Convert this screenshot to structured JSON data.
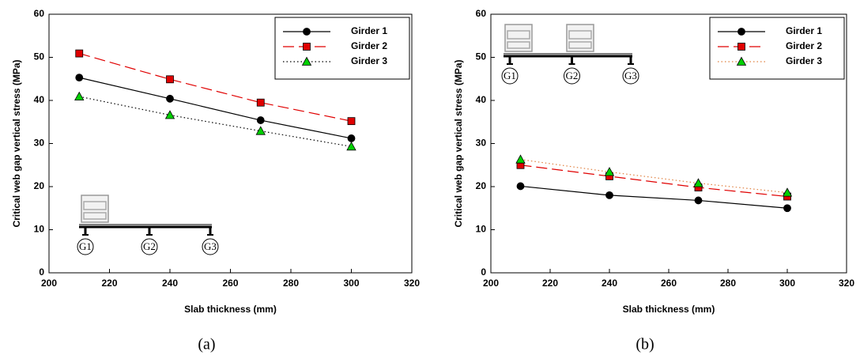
{
  "chart_data": [
    {
      "type": "line",
      "caption": "(a)",
      "x_label": "Slab thickness (mm)",
      "y_label": "Critical web gap vertical stress (MPa)",
      "x": [
        210,
        240,
        270,
        300
      ],
      "series": [
        {
          "name": "Girder 1",
          "color": "#000000",
          "marker_color": "#000000",
          "marker": "circle",
          "dash": "solid",
          "values": [
            45.3,
            40.4,
            35.4,
            31.2
          ]
        },
        {
          "name": "Girder 2",
          "color": "#e00000",
          "marker_color": "#e00000",
          "marker": "square",
          "dash": "dashed",
          "values": [
            50.9,
            44.9,
            39.5,
            35.2
          ]
        },
        {
          "name": "Girder 3",
          "color": "#000000",
          "marker_color": "#00d000",
          "marker": "triangle",
          "dash": "dotted",
          "values": [
            40.9,
            36.6,
            32.9,
            29.3
          ]
        }
      ],
      "xlim": [
        200,
        320
      ],
      "xticks": [
        200,
        220,
        240,
        260,
        280,
        300,
        320
      ],
      "ylim": [
        0,
        60
      ],
      "yticks": [
        0,
        10,
        20,
        30,
        40,
        50,
        60
      ],
      "legend": "upper-right",
      "annotations": [
        "G1",
        "G2",
        "G3"
      ]
    },
    {
      "type": "line",
      "caption": "(b)",
      "x_label": "Slab thickness (mm)",
      "y_label": "Critical web gap vertical stress (MPa)",
      "x": [
        210,
        240,
        270,
        300
      ],
      "series": [
        {
          "name": "Girder 1",
          "color": "#000000",
          "marker_color": "#000000",
          "marker": "circle",
          "dash": "solid",
          "values": [
            20.1,
            18.0,
            16.8,
            15.0
          ]
        },
        {
          "name": "Girder 2",
          "color": "#e00000",
          "marker_color": "#e00000",
          "marker": "square",
          "dash": "dashed",
          "values": [
            25.0,
            22.4,
            19.8,
            17.7
          ]
        },
        {
          "name": "Girder 3",
          "color": "#e08040",
          "marker_color": "#00d000",
          "marker": "triangle",
          "dash": "dotted",
          "values": [
            26.3,
            23.4,
            20.8,
            18.6
          ]
        }
      ],
      "xlim": [
        200,
        320
      ],
      "xticks": [
        200,
        220,
        240,
        260,
        280,
        300,
        320
      ],
      "ylim": [
        0,
        60
      ],
      "yticks": [
        0,
        10,
        20,
        30,
        40,
        50,
        60
      ],
      "legend": "upper-right",
      "annotations": [
        "G1",
        "G2",
        "G3"
      ]
    }
  ]
}
